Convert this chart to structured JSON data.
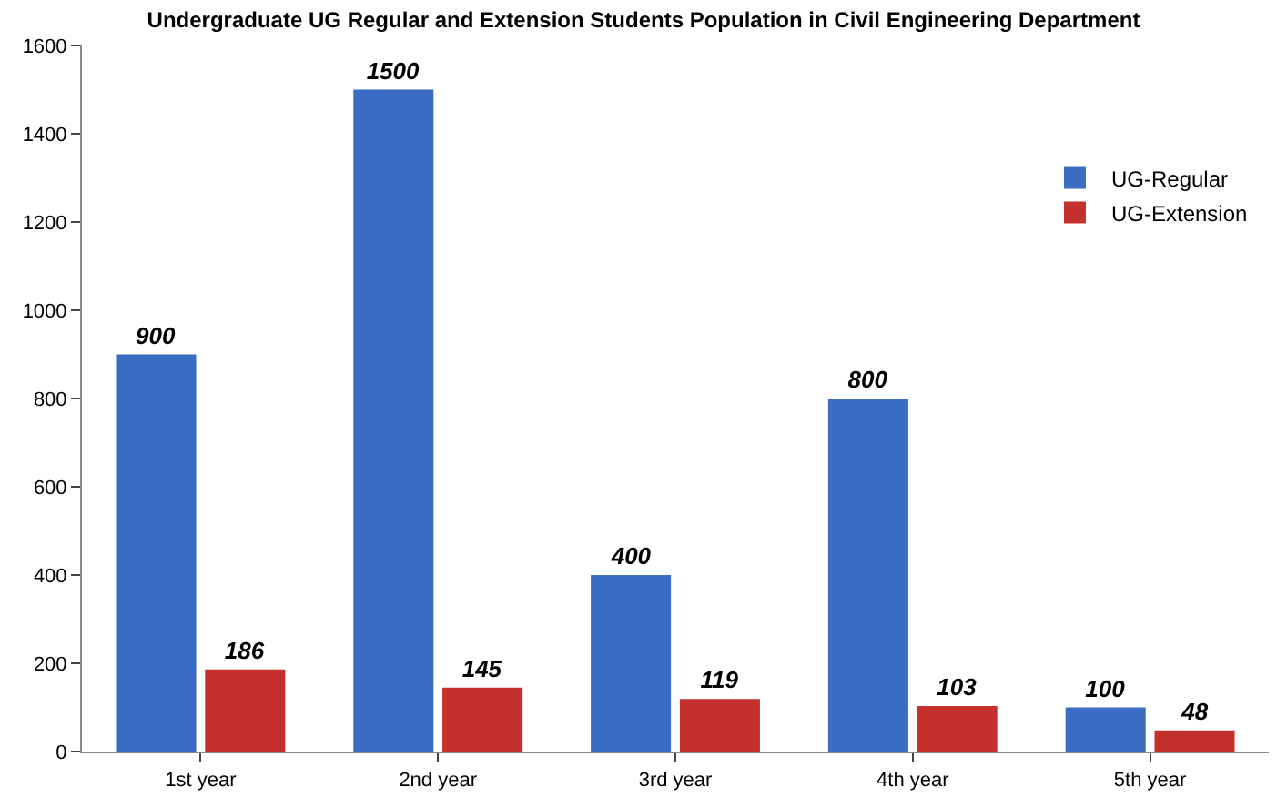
{
  "chart_data": {
    "type": "bar",
    "title": "Undergraduate UG Regular and Extension Students Population in Civil Engineering Department",
    "categories": [
      "1st year",
      "2nd year",
      "3rd year",
      "4th year",
      "5th year"
    ],
    "series": [
      {
        "name": "UG-Regular",
        "color": "#3a6cc4",
        "values": [
          900,
          1500,
          400,
          800,
          100
        ]
      },
      {
        "name": "UG-Extension",
        "color": "#c4302b",
        "values": [
          186,
          145,
          119,
          103,
          48
        ]
      }
    ],
    "ylim": [
      0,
      1600
    ],
    "yticks": [
      0,
      200,
      400,
      600,
      800,
      1000,
      1200,
      1400,
      1600
    ],
    "grid": false,
    "legend": "right",
    "data_labels": true
  }
}
